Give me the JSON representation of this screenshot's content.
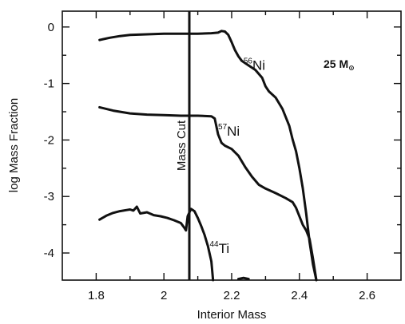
{
  "chart_data": {
    "type": "line",
    "xlabel": "Interior Mass",
    "ylabel": "log Mass Fraction",
    "xlim": [
      1.7,
      2.7
    ],
    "ylim": [
      -4.48,
      0.28
    ],
    "x_ticks": [
      1.8,
      2.0,
      2.2,
      2.4,
      2.6
    ],
    "x_tick_labels": [
      "1.8",
      "2",
      "2.2",
      "2.4",
      "2.6"
    ],
    "y_ticks": [
      0,
      -1,
      -2,
      -3,
      -4
    ],
    "y_tick_labels": [
      "0",
      "-1",
      "-2",
      "-3",
      "-4"
    ],
    "grid": false,
    "annotation": {
      "mass_cut": {
        "x": 2.075,
        "label": "Mass Cut"
      },
      "star_mass": {
        "value": "25 M",
        "subscript": "⊙"
      }
    },
    "series": [
      {
        "isotope_mass": "56",
        "element": "Ni",
        "label_anchor": [
          2.235,
          -0.76
        ],
        "points": [
          [
            1.81,
            -0.23
          ],
          [
            1.84,
            -0.19
          ],
          [
            1.87,
            -0.16
          ],
          [
            1.9,
            -0.14
          ],
          [
            1.95,
            -0.13
          ],
          [
            2.0,
            -0.12
          ],
          [
            2.05,
            -0.12
          ],
          [
            2.1,
            -0.12
          ],
          [
            2.14,
            -0.11
          ],
          [
            2.16,
            -0.1
          ],
          [
            2.17,
            -0.07
          ],
          [
            2.18,
            -0.08
          ],
          [
            2.19,
            -0.14
          ],
          [
            2.2,
            -0.27
          ],
          [
            2.21,
            -0.41
          ],
          [
            2.22,
            -0.52
          ],
          [
            2.23,
            -0.6
          ],
          [
            2.25,
            -0.68
          ],
          [
            2.27,
            -0.76
          ],
          [
            2.29,
            -0.9
          ],
          [
            2.3,
            -1.05
          ],
          [
            2.31,
            -1.14
          ],
          [
            2.33,
            -1.25
          ],
          [
            2.35,
            -1.45
          ],
          [
            2.37,
            -1.75
          ],
          [
            2.38,
            -1.99
          ],
          [
            2.39,
            -2.2
          ],
          [
            2.4,
            -2.5
          ],
          [
            2.41,
            -2.85
          ],
          [
            2.42,
            -3.3
          ],
          [
            2.43,
            -3.8
          ],
          [
            2.44,
            -4.2
          ],
          [
            2.45,
            -4.48
          ]
        ]
      },
      {
        "isotope_mass": "57",
        "element": "Ni",
        "label_anchor": [
          2.16,
          -1.92
        ],
        "points": [
          [
            1.81,
            -1.42
          ],
          [
            1.85,
            -1.48
          ],
          [
            1.9,
            -1.53
          ],
          [
            1.95,
            -1.55
          ],
          [
            2.0,
            -1.56
          ],
          [
            2.05,
            -1.57
          ],
          [
            2.1,
            -1.57
          ],
          [
            2.14,
            -1.58
          ],
          [
            2.15,
            -1.62
          ],
          [
            2.16,
            -1.9
          ],
          [
            2.17,
            -2.05
          ],
          [
            2.18,
            -2.1
          ],
          [
            2.2,
            -2.16
          ],
          [
            2.22,
            -2.28
          ],
          [
            2.24,
            -2.48
          ],
          [
            2.26,
            -2.65
          ],
          [
            2.28,
            -2.79
          ],
          [
            2.3,
            -2.86
          ],
          [
            2.33,
            -2.94
          ],
          [
            2.36,
            -3.03
          ],
          [
            2.38,
            -3.1
          ],
          [
            2.39,
            -3.2
          ],
          [
            2.4,
            -3.35
          ],
          [
            2.41,
            -3.5
          ],
          [
            2.42,
            -3.6
          ],
          [
            2.43,
            -3.75
          ],
          [
            2.44,
            -4.1
          ],
          [
            2.45,
            -4.48
          ]
        ]
      },
      {
        "isotope_mass": "44",
        "element": "Ti",
        "label_anchor": [
          2.135,
          -4.0
        ],
        "points": [
          [
            1.81,
            -3.41
          ],
          [
            1.83,
            -3.34
          ],
          [
            1.85,
            -3.29
          ],
          [
            1.87,
            -3.26
          ],
          [
            1.89,
            -3.24
          ],
          [
            1.9,
            -3.23
          ],
          [
            1.91,
            -3.25
          ],
          [
            1.92,
            -3.18
          ],
          [
            1.93,
            -3.3
          ],
          [
            1.95,
            -3.28
          ],
          [
            1.97,
            -3.33
          ],
          [
            1.99,
            -3.35
          ],
          [
            2.01,
            -3.38
          ],
          [
            2.03,
            -3.42
          ],
          [
            2.05,
            -3.47
          ],
          [
            2.06,
            -3.55
          ],
          [
            2.065,
            -3.6
          ],
          [
            2.07,
            -3.35
          ],
          [
            2.08,
            -3.22
          ],
          [
            2.09,
            -3.26
          ],
          [
            2.1,
            -3.38
          ],
          [
            2.11,
            -3.52
          ],
          [
            2.12,
            -3.68
          ],
          [
            2.13,
            -3.88
          ],
          [
            2.14,
            -4.15
          ],
          [
            2.145,
            -4.48
          ]
        ]
      },
      {
        "isotope_mass": "",
        "element": "",
        "label_anchor": null,
        "points": [
          [
            2.22,
            -4.46
          ],
          [
            2.235,
            -4.44
          ],
          [
            2.25,
            -4.46
          ]
        ]
      }
    ]
  }
}
